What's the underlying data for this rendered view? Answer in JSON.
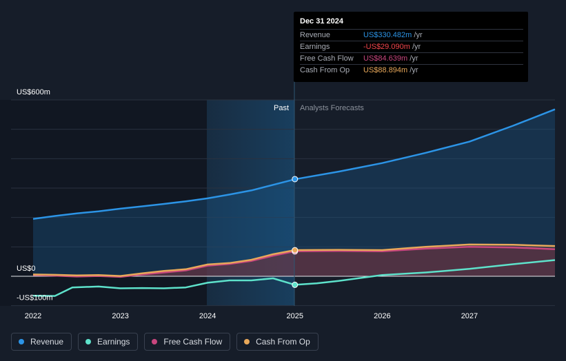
{
  "chart_data": {
    "type": "area",
    "title": "",
    "xlabel": "",
    "ylabel": "",
    "ylim": [
      -100,
      600
    ],
    "y_tick_labels": [
      {
        "value": 600,
        "label": "US$600m"
      },
      {
        "value": 0,
        "label": "US$0"
      },
      {
        "value": -100,
        "label": "-US$100m"
      }
    ],
    "x_ticks": [
      {
        "value": 2022,
        "label": "2022"
      },
      {
        "value": 2023,
        "label": "2023"
      },
      {
        "value": 2024,
        "label": "2024"
      },
      {
        "value": 2025,
        "label": "2025"
      },
      {
        "value": 2026,
        "label": "2026"
      },
      {
        "value": 2027,
        "label": "2027"
      }
    ],
    "xlim": [
      2021.75,
      2027.98
    ],
    "divider_x": 2025.0,
    "past_label": "Past",
    "forecast_label": "Analysts Forecasts",
    "series": [
      {
        "name": "Revenue",
        "color": "#2c94e6",
        "fill": true,
        "points": [
          [
            2022.0,
            195
          ],
          [
            2022.25,
            205
          ],
          [
            2022.5,
            214
          ],
          [
            2022.75,
            221
          ],
          [
            2023.0,
            230
          ],
          [
            2023.25,
            238
          ],
          [
            2023.5,
            246
          ],
          [
            2023.75,
            255
          ],
          [
            2024.0,
            265
          ],
          [
            2024.25,
            278
          ],
          [
            2024.5,
            292
          ],
          [
            2024.75,
            311
          ],
          [
            2025.0,
            330
          ],
          [
            2025.5,
            356
          ],
          [
            2026.0,
            385
          ],
          [
            2026.5,
            420
          ],
          [
            2027.0,
            458
          ],
          [
            2027.5,
            512
          ],
          [
            2027.98,
            568
          ]
        ]
      },
      {
        "name": "Cash From Op",
        "color": "#e8a85a",
        "fill": true,
        "points": [
          [
            2022.0,
            6
          ],
          [
            2022.25,
            5
          ],
          [
            2022.5,
            3
          ],
          [
            2022.75,
            4
          ],
          [
            2023.0,
            1
          ],
          [
            2023.25,
            10
          ],
          [
            2023.5,
            18
          ],
          [
            2023.75,
            24
          ],
          [
            2024.0,
            40
          ],
          [
            2024.25,
            45
          ],
          [
            2024.5,
            56
          ],
          [
            2024.75,
            75
          ],
          [
            2025.0,
            89
          ],
          [
            2025.5,
            90
          ],
          [
            2026.0,
            89
          ],
          [
            2026.5,
            100
          ],
          [
            2027.0,
            108
          ],
          [
            2027.5,
            107
          ],
          [
            2027.98,
            103
          ]
        ]
      },
      {
        "name": "Free Cash Flow",
        "color": "#c8467e",
        "fill": true,
        "points": [
          [
            2022.0,
            4
          ],
          [
            2022.25,
            2
          ],
          [
            2022.5,
            -1
          ],
          [
            2022.75,
            1
          ],
          [
            2023.0,
            -2
          ],
          [
            2023.25,
            6
          ],
          [
            2023.5,
            13
          ],
          [
            2023.75,
            20
          ],
          [
            2024.0,
            36
          ],
          [
            2024.25,
            42
          ],
          [
            2024.5,
            52
          ],
          [
            2024.75,
            70
          ],
          [
            2025.0,
            85
          ],
          [
            2025.5,
            86
          ],
          [
            2026.0,
            85
          ],
          [
            2026.5,
            94
          ],
          [
            2027.0,
            100
          ],
          [
            2027.5,
            98
          ],
          [
            2027.98,
            92
          ]
        ]
      },
      {
        "name": "Earnings",
        "color": "#5ee2cb",
        "fill": false,
        "points": [
          [
            2022.0,
            -66
          ],
          [
            2022.25,
            -67
          ],
          [
            2022.45,
            -38
          ],
          [
            2022.75,
            -35
          ],
          [
            2023.0,
            -41
          ],
          [
            2023.25,
            -40
          ],
          [
            2023.5,
            -41
          ],
          [
            2023.75,
            -38
          ],
          [
            2024.0,
            -22
          ],
          [
            2024.25,
            -14
          ],
          [
            2024.5,
            -14
          ],
          [
            2024.75,
            -7
          ],
          [
            2025.0,
            -29
          ],
          [
            2025.25,
            -24
          ],
          [
            2025.5,
            -16
          ],
          [
            2026.0,
            4
          ],
          [
            2026.5,
            13
          ],
          [
            2027.0,
            25
          ],
          [
            2027.5,
            41
          ],
          [
            2027.98,
            55
          ]
        ]
      }
    ],
    "highlight": {
      "date": "Dec 31 2024",
      "x": 2025.0,
      "items": [
        {
          "label": "Revenue",
          "value": "US$330.482m",
          "unit": "/yr",
          "color": "#2c94e6",
          "y": 330.482
        },
        {
          "label": "Earnings",
          "value": "-US$29.090m",
          "unit": "/yr",
          "color": "#f3454b",
          "y": -29.09
        },
        {
          "label": "Free Cash Flow",
          "value": "US$84.639m",
          "unit": "/yr",
          "color": "#c8467e",
          "y": 84.639
        },
        {
          "label": "Cash From Op",
          "value": "US$88.894m",
          "unit": "/yr",
          "color": "#e8a85a",
          "y": 88.894
        }
      ]
    },
    "legend": [
      {
        "label": "Revenue",
        "color": "#2c94e6"
      },
      {
        "label": "Earnings",
        "color": "#5ee2cb"
      },
      {
        "label": "Free Cash Flow",
        "color": "#c8467e"
      },
      {
        "label": "Cash From Op",
        "color": "#e8a85a"
      }
    ]
  }
}
